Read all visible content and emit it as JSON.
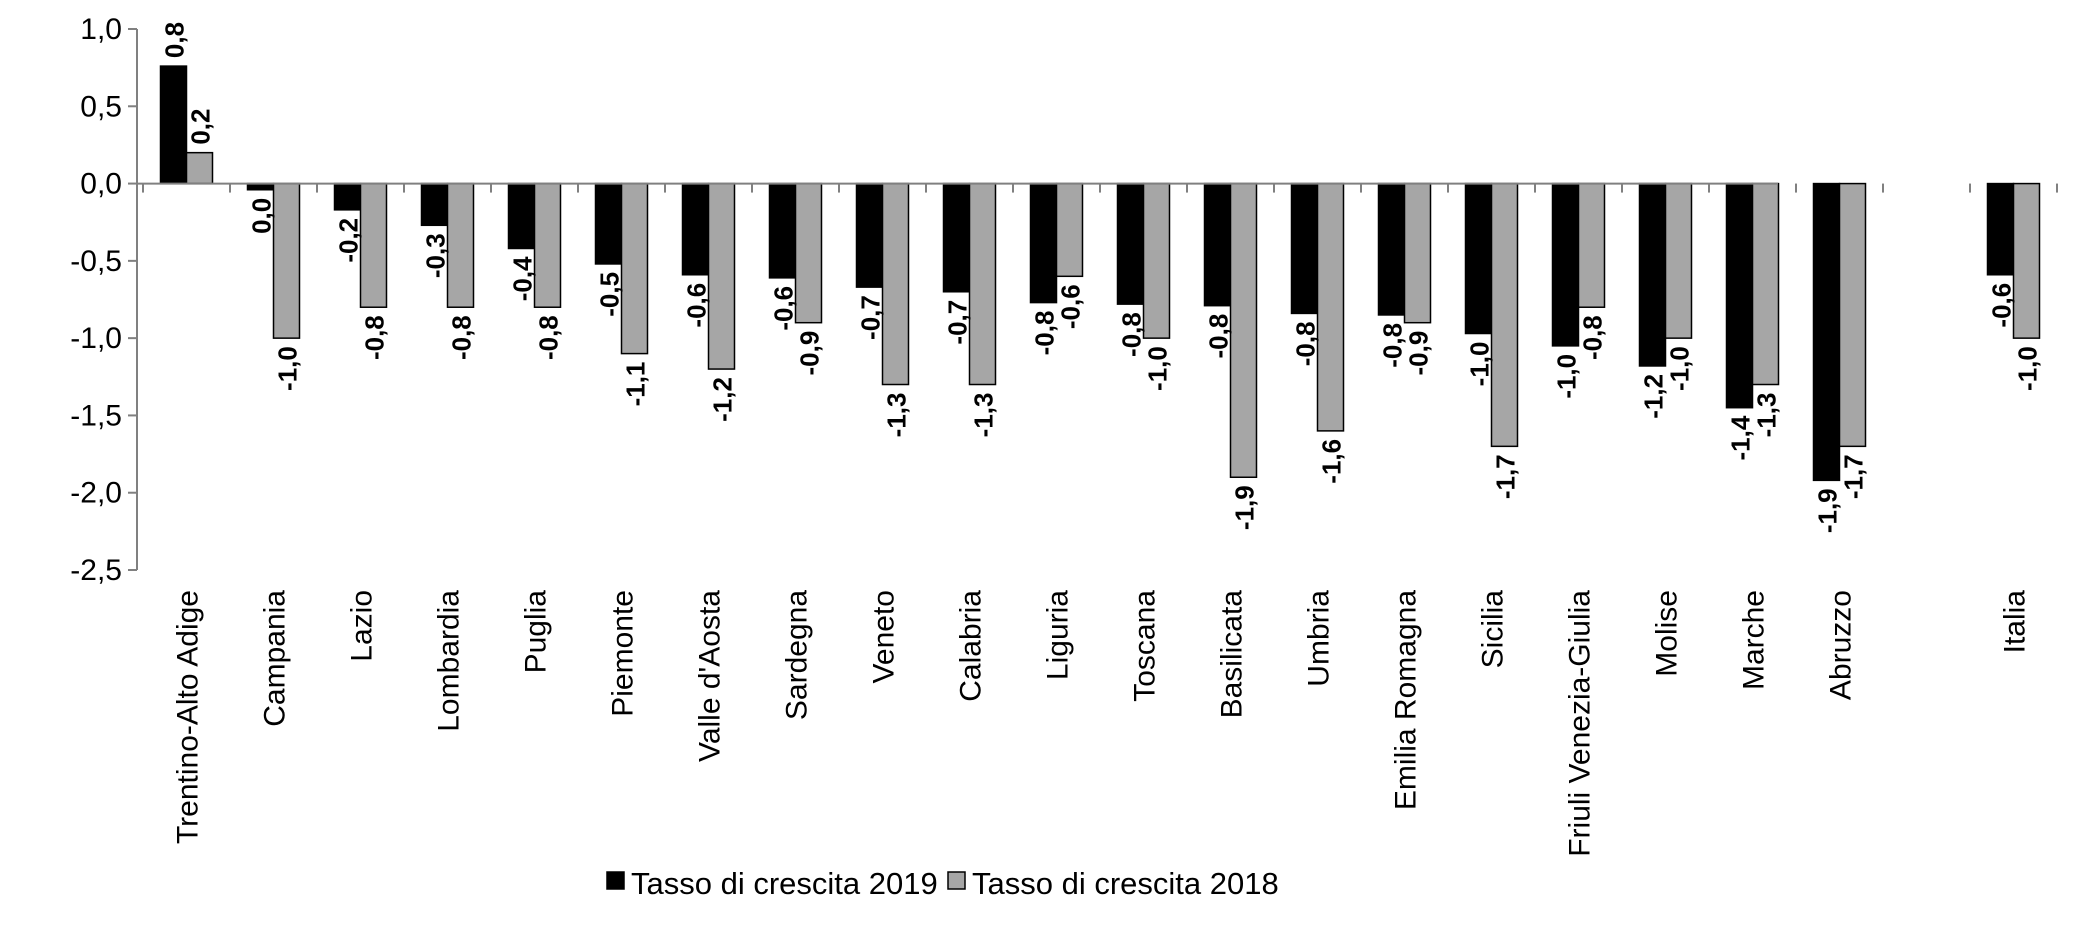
{
  "chart_data": {
    "type": "bar",
    "title": "",
    "xlabel": "",
    "ylabel": "",
    "ylim": [
      -2.5,
      1.0
    ],
    "yticks": [
      1.0,
      0.5,
      0.0,
      -0.5,
      -1.0,
      -1.5,
      -2.0,
      -2.5
    ],
    "ytick_labels": [
      "1,0",
      "0,5",
      "0,0",
      "-0,5",
      "-1,0",
      "-1,5",
      "-2,0",
      "-2,5"
    ],
    "grid": false,
    "legend_position": "bottom",
    "categories": [
      "Trentino-Alto Adige",
      "Campania",
      "Lazio",
      "Lombardia",
      "Puglia",
      "Piemonte",
      "Valle d'Aosta",
      "Sardegna",
      "Veneto",
      "Calabria",
      "Liguria",
      "Toscana",
      "Basilicata",
      "Umbria",
      "Emilia Romagna",
      "Sicilia",
      "Friuli Venezia-Giulia",
      "Molise",
      "Marche",
      "Abruzzo",
      "",
      "Italia"
    ],
    "series": [
      {
        "name": "Tasso di crescita 2019",
        "color": "#000000",
        "values": [
          0.76,
          -0.04,
          -0.17,
          -0.27,
          -0.42,
          -0.52,
          -0.59,
          -0.61,
          -0.67,
          -0.7,
          -0.77,
          -0.78,
          -0.79,
          -0.84,
          -0.85,
          -0.97,
          -1.05,
          -1.18,
          -1.45,
          -1.92,
          null,
          -0.59
        ],
        "labels": [
          "0,8",
          "0,0",
          "-0,2",
          "-0,3",
          "-0,4",
          "-0,5",
          "-0,6",
          "-0,6",
          "-0,7",
          "-0,7",
          "-0,8",
          "-0,8",
          "-0,8",
          "-0,8",
          "-0,8",
          "-1,0",
          "-1,0",
          "-1,2",
          "-1,4",
          "-1,9",
          null,
          "-0,6"
        ]
      },
      {
        "name": "Tasso di crescita 2018",
        "color": "#a6a6a6",
        "values": [
          0.2,
          -1.0,
          -0.8,
          -0.8,
          -0.8,
          -1.1,
          -1.2,
          -0.9,
          -1.3,
          -1.3,
          -0.6,
          -1.0,
          -1.9,
          -1.6,
          -0.9,
          -1.7,
          -0.8,
          -1.0,
          -1.3,
          -1.7,
          null,
          -1.0
        ],
        "labels": [
          "0,2",
          "-1,0",
          "-0,8",
          "-0,8",
          "-0,8",
          "-1,1",
          "-1,2",
          "-0,9",
          "-1,3",
          "-1,3",
          "-0,6",
          "-1,0",
          "-1,9",
          "-1,6",
          "-0,9",
          "-1,7",
          "-0,8",
          "-1,0",
          "-1,3",
          "-1,7",
          null,
          "-1,0"
        ]
      }
    ]
  }
}
